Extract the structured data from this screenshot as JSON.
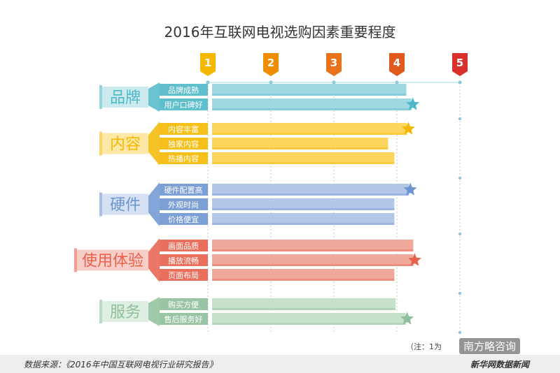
{
  "chart_data": {
    "type": "bar",
    "orientation": "horizontal",
    "title": "2016年互联网电视选购因素重要程度",
    "x_ticks": [
      "1",
      "2",
      "3",
      "4",
      "5"
    ],
    "xlim": [
      1,
      5
    ],
    "marker_colors": [
      "#f5b800",
      "#f08c00",
      "#e8731a",
      "#e05a1e",
      "#d9302c"
    ],
    "groups": [
      {
        "name": "品牌",
        "color": "#4fb8c8",
        "bar_color": "#9fd8e0",
        "items": [
          {
            "label": "品牌成熟",
            "value": 4.15,
            "star": false
          },
          {
            "label": "用户口碑好",
            "value": 4.23,
            "star": true
          }
        ]
      },
      {
        "name": "内容",
        "color": "#f5b800",
        "bar_color": "#fbd55c",
        "items": [
          {
            "label": "内容丰富",
            "value": 4.16,
            "star": true
          },
          {
            "label": "独家内容",
            "value": 3.86,
            "star": false
          },
          {
            "label": "热播内容",
            "value": 3.96,
            "star": false
          }
        ]
      },
      {
        "name": "硬件",
        "color": "#6e95d0",
        "bar_color": "#b3c8e8",
        "items": [
          {
            "label": "硬件配置高",
            "value": 4.19,
            "star": true
          },
          {
            "label": "外观时尚",
            "value": 3.96,
            "star": false
          },
          {
            "label": "价格便宜",
            "value": 3.96,
            "star": false
          }
        ]
      },
      {
        "name": "使用体验",
        "color": "#e8604c",
        "bar_color": "#f0a89a",
        "items": [
          {
            "label": "画面品质",
            "value": 4.26,
            "star": false
          },
          {
            "label": "播放流畅",
            "value": 4.26,
            "star": true
          },
          {
            "label": "页面布局",
            "value": 3.96,
            "star": false
          }
        ]
      },
      {
        "name": "服务",
        "color": "#8fbf9a",
        "bar_color": "#c5e0cb",
        "items": [
          {
            "label": "购买方便",
            "value": 3.98,
            "star": false
          },
          {
            "label": "售后服务好",
            "value": 4.14,
            "star": true
          }
        ]
      }
    ]
  },
  "footer": {
    "source": "数据来源：《2016年中国互联网电视行业研究报告》",
    "brand": "新华网数据新闻",
    "note": "（注：1为",
    "watermark": "南方略咨询"
  }
}
